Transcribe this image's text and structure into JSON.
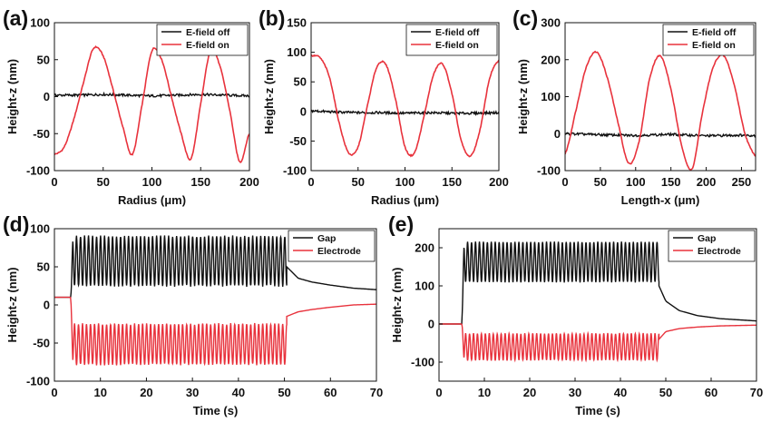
{
  "colors": {
    "off": "#111111",
    "on": "#e8323c"
  },
  "chart_data": [
    {
      "panel": "(a)",
      "type": "line",
      "xlabel": "Radius (μm)",
      "ylabel": "Height-z (nm)",
      "xlim": [
        0,
        200
      ],
      "ylim": [
        -100,
        100
      ],
      "xticks": [
        0,
        50,
        100,
        150,
        200
      ],
      "yticks": [
        -100,
        -50,
        0,
        50,
        100
      ],
      "legend_position": "top-right",
      "series": [
        {
          "name": "E-field off",
          "color": "#111111",
          "x": [
            0,
            25,
            50,
            75,
            100,
            125,
            150,
            175,
            200
          ],
          "y": [
            2,
            2,
            3,
            2,
            1,
            2,
            3,
            2,
            1
          ]
        },
        {
          "name": "E-field on",
          "color": "#e8323c",
          "x": [
            0,
            10,
            20,
            30,
            40,
            50,
            60,
            70,
            80,
            90,
            100,
            110,
            120,
            130,
            140,
            150,
            160,
            170,
            180,
            190,
            200
          ],
          "y": [
            -78,
            -68,
            -30,
            20,
            65,
            55,
            10,
            -40,
            -78,
            -10,
            62,
            50,
            0,
            -50,
            -84,
            -10,
            62,
            40,
            -20,
            -88,
            -50
          ]
        }
      ]
    },
    {
      "panel": "(b)",
      "type": "line",
      "xlabel": "Radius (μm)",
      "ylabel": "Height-z (nm)",
      "xlim": [
        0,
        200
      ],
      "ylim": [
        -100,
        150
      ],
      "xticks": [
        0,
        50,
        100,
        150,
        200
      ],
      "yticks": [
        -100,
        -50,
        0,
        50,
        100,
        150
      ],
      "legend_position": "top-right",
      "series": [
        {
          "name": "E-field off",
          "color": "#111111",
          "x": [
            0,
            25,
            50,
            75,
            100,
            125,
            150,
            175,
            200
          ],
          "y": [
            1,
            -1,
            -2,
            -2,
            -3,
            -2,
            -3,
            -3,
            -2
          ]
        },
        {
          "name": "E-field on",
          "color": "#e8323c",
          "x": [
            0,
            10,
            20,
            30,
            40,
            50,
            60,
            70,
            80,
            90,
            100,
            110,
            120,
            130,
            140,
            150,
            160,
            170,
            180,
            190,
            200
          ],
          "y": [
            94,
            90,
            55,
            -20,
            -70,
            -60,
            10,
            75,
            78,
            20,
            -60,
            -70,
            -10,
            60,
            80,
            30,
            -50,
            -75,
            -30,
            55,
            86
          ]
        }
      ]
    },
    {
      "panel": "(c)",
      "type": "line",
      "xlabel": "Length-x (μm)",
      "ylabel": "Height-z (nm)",
      "xlim": [
        0,
        270
      ],
      "ylim": [
        -100,
        300
      ],
      "xticks": [
        0,
        50,
        100,
        150,
        200,
        250
      ],
      "yticks": [
        -100,
        0,
        100,
        200,
        300
      ],
      "legend_position": "top-right",
      "series": [
        {
          "name": "E-field off",
          "color": "#111111",
          "x": [
            0,
            50,
            100,
            150,
            200,
            250,
            270
          ],
          "y": [
            0,
            -3,
            -5,
            -2,
            -6,
            -4,
            -5
          ]
        },
        {
          "name": "E-field on",
          "color": "#e8323c",
          "x": [
            0,
            15,
            30,
            45,
            60,
            75,
            90,
            105,
            120,
            135,
            150,
            165,
            180,
            195,
            210,
            225,
            240,
            255,
            270
          ],
          "y": [
            -55,
            60,
            180,
            220,
            150,
            30,
            -80,
            -20,
            150,
            210,
            120,
            -30,
            -95,
            60,
            180,
            210,
            130,
            0,
            -60
          ]
        }
      ]
    },
    {
      "panel": "(d)",
      "type": "line",
      "xlabel": "Time (s)",
      "ylabel": "Height-z (nm)",
      "xlim": [
        0,
        70
      ],
      "ylim": [
        -100,
        100
      ],
      "xticks": [
        0,
        10,
        20,
        30,
        40,
        50,
        60,
        70
      ],
      "yticks": [
        -100,
        -50,
        0,
        50,
        100
      ],
      "legend_position": "top-right",
      "oscillation": {
        "start": 3.5,
        "end": 50.5,
        "cycles": 54
      },
      "series": [
        {
          "name": "Gap",
          "color": "#111111",
          "baseline_before": 10,
          "high": 90,
          "low": 25,
          "decay_x": [
            50.5,
            53,
            56,
            60,
            65,
            70
          ],
          "decay_y": [
            50,
            35,
            30,
            26,
            22,
            20
          ]
        },
        {
          "name": "Electrode",
          "color": "#e8323c",
          "baseline_before": 10,
          "high": -25,
          "low": -78,
          "decay_x": [
            50.5,
            53,
            56,
            60,
            65,
            70
          ],
          "decay_y": [
            -15,
            -9,
            -6,
            -3,
            0,
            1
          ]
        }
      ]
    },
    {
      "panel": "(e)",
      "type": "line",
      "xlabel": "Time (s)",
      "ylabel": "Height-z (nm)",
      "xlim": [
        0,
        70
      ],
      "ylim": [
        -150,
        250
      ],
      "xticks": [
        0,
        10,
        20,
        30,
        40,
        50,
        60,
        70
      ],
      "yticks": [
        -100,
        0,
        100,
        200
      ],
      "legend_position": "top-right",
      "oscillation": {
        "start": 5,
        "end": 48.5,
        "cycles": 50
      },
      "series": [
        {
          "name": "Gap",
          "color": "#111111",
          "baseline_before": 0,
          "high": 215,
          "low": 110,
          "decay_x": [
            48.5,
            50,
            53,
            57,
            62,
            70
          ],
          "decay_y": [
            100,
            60,
            35,
            22,
            14,
            8
          ]
        },
        {
          "name": "Electrode",
          "color": "#e8323c",
          "baseline_before": 0,
          "high": -25,
          "low": -95,
          "decay_x": [
            48.5,
            50,
            53,
            57,
            62,
            70
          ],
          "decay_y": [
            -40,
            -20,
            -12,
            -8,
            -5,
            -3
          ]
        }
      ]
    }
  ]
}
